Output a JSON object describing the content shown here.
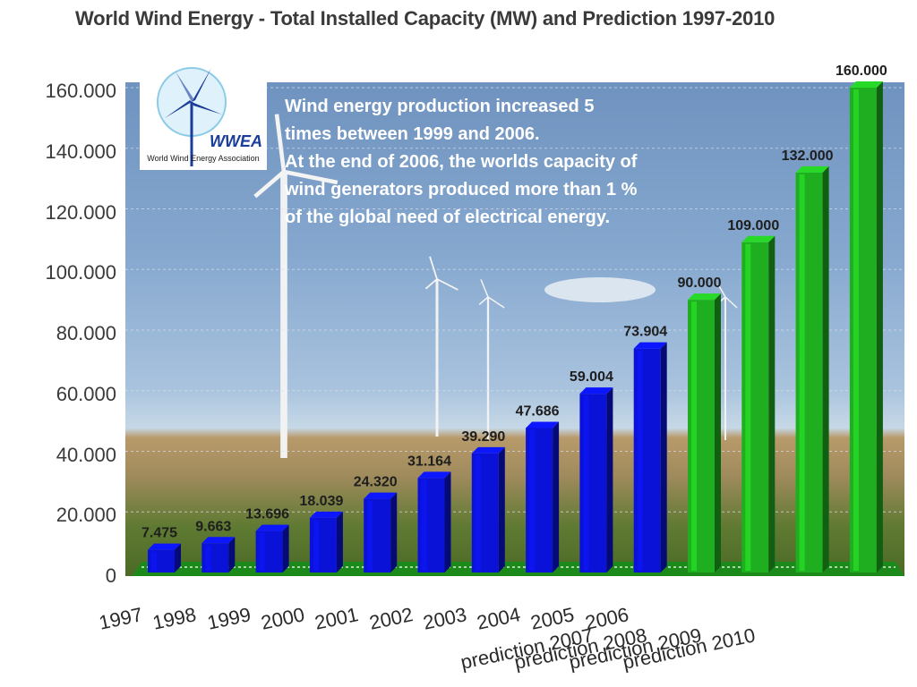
{
  "chart_data": {
    "type": "bar",
    "title": "World Wind Energy - Total Installed Capacity (MW) and Prediction 1997-2010",
    "categories": [
      "1997",
      "1998",
      "1999",
      "2000",
      "2001",
      "2002",
      "2003",
      "2004",
      "2005",
      "2006",
      "prediction 2007",
      "prediction 2008",
      "prediction 2009",
      "prediction 2010"
    ],
    "values": [
      7475,
      9663,
      13696,
      18039,
      24320,
      31164,
      39290,
      47686,
      59004,
      73904,
      90000,
      109000,
      132000,
      160000
    ],
    "value_labels": [
      "7.475",
      "9.663",
      "13.696",
      "18.039",
      "24.320",
      "31.164",
      "39.290",
      "47.686",
      "59.004",
      "73.904",
      "90.000",
      "109.000",
      "132.000",
      "160.000"
    ],
    "ylim": [
      0,
      160000
    ],
    "yticks": [
      0,
      20000,
      40000,
      60000,
      80000,
      100000,
      120000,
      140000,
      160000
    ],
    "ytick_labels": [
      "0",
      "20.000",
      "40.000",
      "60.000",
      "80.000",
      "100.000",
      "120.000",
      "140.000",
      "160.000"
    ],
    "xlabel": "",
    "ylabel": "",
    "grid": true,
    "colors": {
      "actual": "#0a12d8",
      "prediction": "#1fae1f",
      "floor": "#1b8a1b"
    }
  },
  "logo": {
    "abbr": "WWEA",
    "name": "World Wind Energy Association",
    "icon": "wind-turbine-icon"
  },
  "annotation": [
    "Wind energy production increased 5",
    "times between 1999 and 2006.",
    "At the end of 2006, the worlds capacity of",
    "wind generators produced more than 1 %",
    "of the global need of electrical energy."
  ]
}
